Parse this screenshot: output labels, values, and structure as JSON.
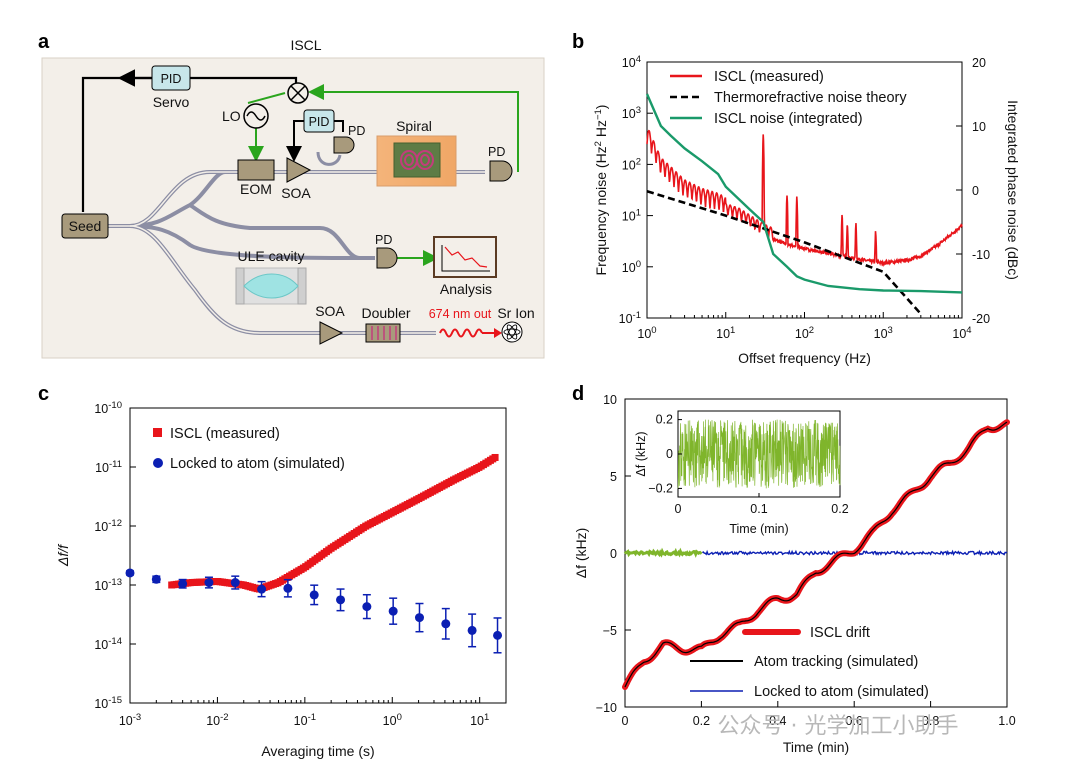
{
  "panels": {
    "a": "a",
    "b": "b",
    "c": "c",
    "d": "d"
  },
  "schematic": {
    "title": "ISCL",
    "pid_top": "PID",
    "servo": "Servo",
    "lo": "LO",
    "pid_mid": "PID",
    "pd1": "PD",
    "spiral": "Spiral",
    "pd2": "PD",
    "eom": "EOM",
    "soa1": "SOA",
    "seed": "Seed",
    "ule": "ULE cavity",
    "pd3": "PD",
    "analysis": "Analysis",
    "soa2": "SOA",
    "doubler": "Doubler",
    "output": "674 nm out",
    "ion_line1": "Sr Ion",
    "eom_label": "EOM"
  },
  "watermark": "公众号 · 光学加工小助手",
  "colors": {
    "red": "#e8151b",
    "green": "#1a9a6a",
    "lime": "#7fb52b",
    "blue": "#0b1fb3",
    "black": "#000000"
  },
  "chart_data": [
    {
      "id": "b",
      "type": "line",
      "xlabel": "Offset frequency (Hz)",
      "ylabel": "Frequency noise (Hz^2 Hz^-1)",
      "y2label": "Integrated phase noise (dBc)",
      "xscale": "log",
      "xlim": [
        1,
        10000
      ],
      "yscale": "log",
      "ylim": [
        0.1,
        10000
      ],
      "y2lim": [
        -20,
        20
      ],
      "xticks": [
        "10^0",
        "10^1",
        "10^2",
        "10^3",
        "10^4"
      ],
      "yticks": [
        "10^-1",
        "10^0",
        "10^1",
        "10^2",
        "10^3",
        "10^4"
      ],
      "y2ticks": [
        "20",
        "10",
        "0",
        "-10",
        "-20"
      ],
      "legend": [
        "ISCL (measured)",
        "Thermorefractive noise theory",
        "ISCL noise (integrated)"
      ],
      "series": [
        {
          "name": "ISCL (measured)",
          "x": [
            1,
            1.5,
            2,
            3,
            5,
            8,
            10,
            15,
            20,
            30,
            50,
            80,
            100,
            200,
            300,
            500,
            800,
            1000,
            2000,
            3000,
            5000,
            10000
          ],
          "y": [
            250,
            60,
            40,
            22,
            15,
            12,
            10,
            8,
            6,
            4,
            2.8,
            2.3,
            2.1,
            1.7,
            1.5,
            1.3,
            1.15,
            1.1,
            1.25,
            1.5,
            2.5,
            6
          ]
        },
        {
          "name": "Thermorefractive noise theory",
          "x": [
            1,
            10,
            100,
            1000,
            3000
          ],
          "y": [
            30,
            10,
            3,
            0.8,
            0.12
          ]
        },
        {
          "name": "ISCL noise (integrated)",
          "x": [
            1,
            1.5,
            2,
            3,
            5,
            8,
            10,
            20,
            30,
            40,
            60,
            80,
            100,
            200,
            500,
            1000,
            3000,
            10000
          ],
          "y2": [
            15,
            10,
            8.5,
            6.5,
            4.5,
            2.5,
            0.5,
            -3,
            -5,
            -10,
            -12,
            -13.5,
            -14,
            -15,
            -15.5,
            -15.7,
            -15.8,
            -16
          ]
        }
      ]
    },
    {
      "id": "c",
      "type": "scatter",
      "xlabel": "Averaging time (s)",
      "ylabel": "Δf/f",
      "xscale": "log",
      "xlim": [
        0.001,
        20
      ],
      "yscale": "log",
      "ylim": [
        1e-15,
        1e-10
      ],
      "xticks": [
        "10^-3",
        "10^-2",
        "10^-1",
        "10^0",
        "10^1"
      ],
      "yticks": [
        "10^-10",
        "10^-11",
        "10^-12",
        "10^-13",
        "10^-14",
        "10^-15"
      ],
      "legend": [
        "ISCL (measured)",
        "Locked to atom (simulated)"
      ],
      "series": [
        {
          "name": "ISCL (measured)",
          "x": [
            0.003,
            0.005,
            0.01,
            0.02,
            0.03,
            0.05,
            0.1,
            0.2,
            0.5,
            1,
            2,
            5,
            10,
            15
          ],
          "y": [
            1e-13,
            1.1e-13,
            1.15e-13,
            1e-13,
            8.5e-14,
            1.1e-13,
            2e-13,
            4.2e-13,
            1e-12,
            1.7e-12,
            2.9e-12,
            6e-12,
            1e-11,
            1.45e-11
          ]
        },
        {
          "name": "Locked to atom (simulated)",
          "x": [
            0.001,
            0.002,
            0.004,
            0.008,
            0.016,
            0.032,
            0.064,
            0.128,
            0.256,
            0.512,
            1.024,
            2.048,
            4.096,
            8.192,
            16
          ],
          "y": [
            1.6e-13,
            1.25e-13,
            1.05e-13,
            1.1e-13,
            1.1e-13,
            8.5e-14,
            8.8e-14,
            6.8e-14,
            5.6e-14,
            4.3e-14,
            3.6e-14,
            2.8e-14,
            2.2e-14,
            1.7e-14,
            1.4e-14
          ]
        }
      ]
    },
    {
      "id": "d",
      "type": "line",
      "xlabel": "Time (min)",
      "ylabel": "Δf (kHz)",
      "xlim": [
        0,
        1
      ],
      "ylim": [
        -10,
        10
      ],
      "xticks": [
        "0",
        "0.2",
        "0.4",
        "0.6",
        "0.8",
        "1.0"
      ],
      "yticks": [
        "10",
        "5",
        "0",
        "-5",
        "-10"
      ],
      "legend": [
        "ISCL drift",
        "Atom tracking (simulated)",
        "Locked to atom (simulated)"
      ],
      "series": [
        {
          "name": "ISCL drift",
          "x": [
            0,
            0.05,
            0.1,
            0.15,
            0.2,
            0.25,
            0.3,
            0.35,
            0.4,
            0.45,
            0.5,
            0.55,
            0.6,
            0.65,
            0.7,
            0.75,
            0.8,
            0.85,
            0.9,
            0.95,
            1.0
          ],
          "y": [
            -8.7,
            -7,
            -6,
            -6.2,
            -6.3,
            -5.3,
            -4.7,
            -3.7,
            -3,
            -2.7,
            -1.2,
            -0.5,
            0.2,
            1.3,
            2.8,
            3.8,
            5,
            5.8,
            6.8,
            8.2,
            8.3
          ]
        },
        {
          "name": "Locked to atom (simulated)",
          "x": [
            0,
            1
          ],
          "y": [
            0,
            0
          ]
        }
      ],
      "inset": {
        "xlabel": "Time (min)",
        "ylabel": "Δf (kHz)",
        "xlim": [
          0,
          0.2
        ],
        "ylim": [
          -0.25,
          0.25
        ],
        "xticks": [
          "0",
          "0.1",
          "0.2"
        ],
        "yticks": [
          "0.2",
          "0",
          "-0.2"
        ]
      }
    }
  ]
}
